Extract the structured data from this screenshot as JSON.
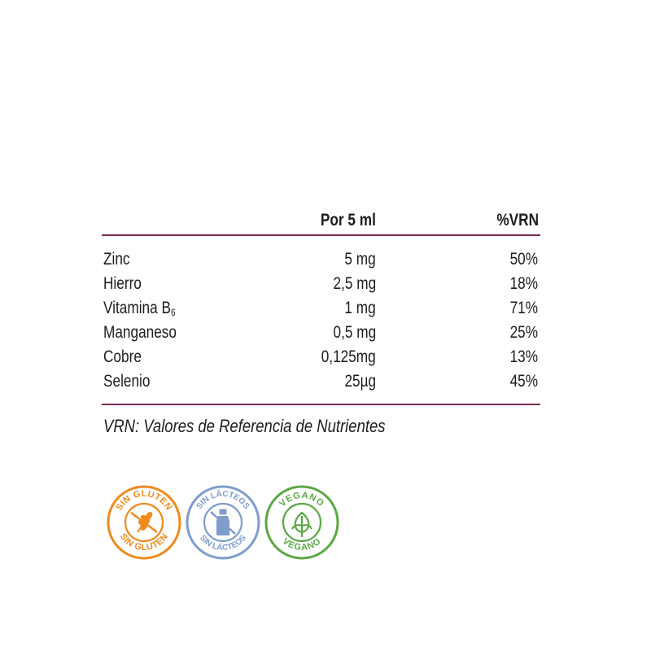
{
  "table": {
    "columns": [
      "",
      "Por 5 ml",
      "%VRN"
    ],
    "rows": [
      {
        "name": "Zinc",
        "name_sub": "",
        "amount": "5 mg",
        "vrn": "50%"
      },
      {
        "name": "Hierro",
        "name_sub": "",
        "amount": "2,5 mg",
        "vrn": "18%"
      },
      {
        "name": "Vitamina B",
        "name_sub": "6",
        "amount": "1 mg",
        "vrn": "71%"
      },
      {
        "name": "Manganeso",
        "name_sub": "",
        "amount": "0,5 mg",
        "vrn": "25%"
      },
      {
        "name": "Cobre",
        "name_sub": "",
        "amount": "0,125mg",
        "vrn": "13%"
      },
      {
        "name": "Selenio",
        "name_sub": "",
        "amount": "25µg",
        "vrn": "45%"
      }
    ],
    "rule_color": "#7a2a53"
  },
  "footnote": "VRN: Valores de Referencia de Nutrientes",
  "badges": [
    {
      "text": "SIN GLUTEN",
      "icon": "wheat-crossed-icon",
      "color": "#f08a1c"
    },
    {
      "text": "SIN LÁCTEOS",
      "icon": "bottle-crossed-icon",
      "color": "#7f9ccc"
    },
    {
      "text": "VEGANO",
      "icon": "leaf-icon",
      "color": "#5aa843"
    }
  ]
}
